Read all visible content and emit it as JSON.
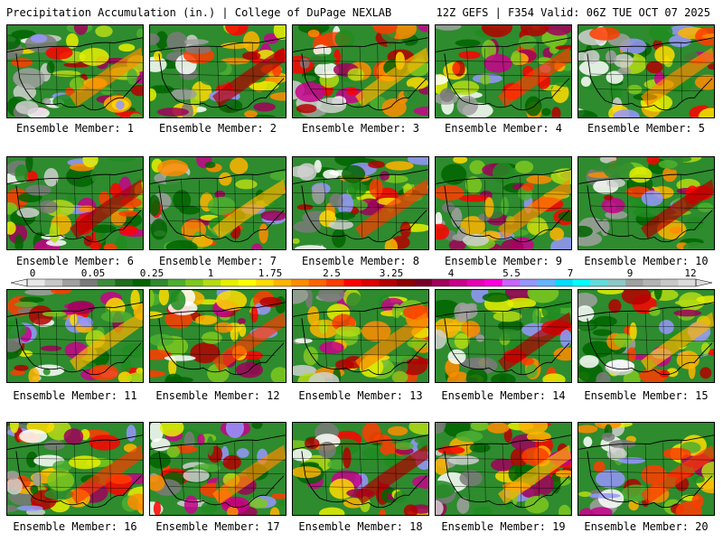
{
  "header": {
    "title_left": "Precipitation Accumulation (in.) | College of DuPage NEXLAB",
    "title_right": "12Z GEFS | F354 Valid: 06Z TUE OCT 07 2025"
  },
  "label_prefix": "Ensemble Member: ",
  "members": [
    1,
    2,
    3,
    4,
    5,
    6,
    7,
    8,
    9,
    10,
    11,
    12,
    13,
    14,
    15,
    16,
    17,
    18,
    19,
    20
  ],
  "colorbar": {
    "tick_labels": [
      "0",
      "0.05",
      "0.25",
      "1",
      "1.75",
      "2.5",
      "3.25",
      "4",
      "5.5",
      "7",
      "9",
      "12"
    ],
    "colors": [
      "#e8e8e8",
      "#c8c8c8",
      "#a0a0a0",
      "#7a7a7a",
      "#3c8c3c",
      "#1e6e1e",
      "#006400",
      "#2e8b2e",
      "#4caf30",
      "#7cc81e",
      "#b4dc14",
      "#e6f000",
      "#ffff00",
      "#ffdc00",
      "#ffb400",
      "#ff8c00",
      "#ff6400",
      "#ff3c00",
      "#ff0000",
      "#dc0000",
      "#b40000",
      "#8c0000",
      "#780028",
      "#a0005a",
      "#c8008c",
      "#e600b4",
      "#ff00dc",
      "#c864ff",
      "#9696ff",
      "#64b4ff",
      "#00dcff",
      "#00ffff",
      "#64dcdc",
      "#8cc8c8",
      "#a0a0a0",
      "#b4b4b4",
      "#c8c8c8",
      "#dcdcdc"
    ]
  }
}
